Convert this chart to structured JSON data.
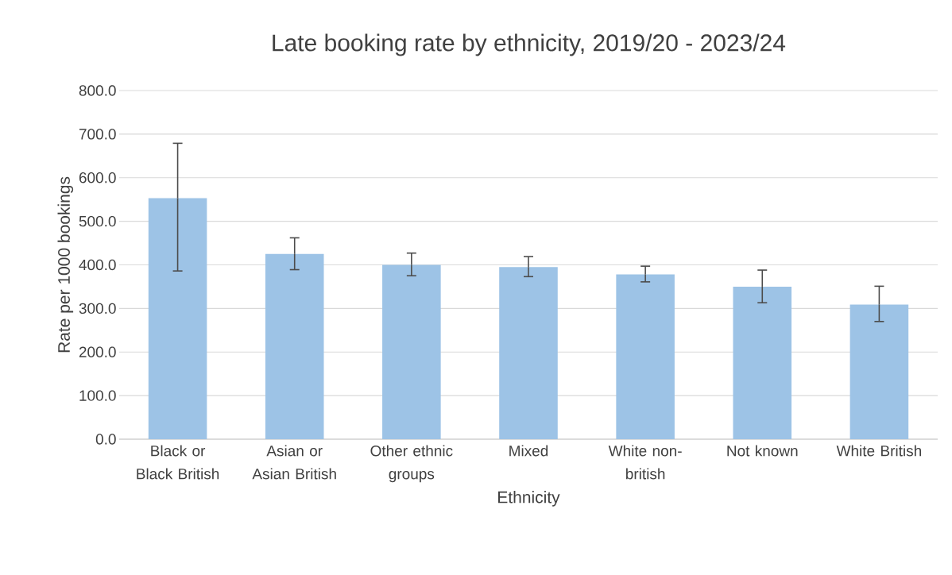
{
  "chart_data": {
    "type": "bar",
    "title": "Late booking rate by ethnicity, 2019/20 - 2023/24",
    "xlabel": "Ethnicity",
    "ylabel": "Rate per 1000 bookings",
    "categories": [
      "Black or Black British",
      "Asian or Asian British",
      "Other ethnic groups",
      "Mixed",
      "White non-british",
      "Not known",
      "White British"
    ],
    "values": [
      553,
      425,
      400,
      395,
      378,
      350,
      309
    ],
    "errors": [
      [
        386,
        679
      ],
      [
        389,
        462
      ],
      [
        375,
        427
      ],
      [
        373,
        419
      ],
      [
        361,
        397
      ],
      [
        313,
        388
      ],
      [
        270,
        351
      ]
    ],
    "color": "#9dc3e6",
    "ylim": [
      0,
      800
    ],
    "yticks": [
      {
        "value": 0,
        "label": "0.0"
      },
      {
        "value": 100,
        "label": "100.0"
      },
      {
        "value": 200,
        "label": "200.0"
      },
      {
        "value": 300,
        "label": "300.0"
      },
      {
        "value": 400,
        "label": "400.0"
      },
      {
        "value": 500,
        "label": "500.0"
      },
      {
        "value": 600,
        "label": "600.0"
      },
      {
        "value": 700,
        "label": "700.0"
      },
      {
        "value": 800,
        "label": "800.0"
      }
    ],
    "grid": "y"
  }
}
